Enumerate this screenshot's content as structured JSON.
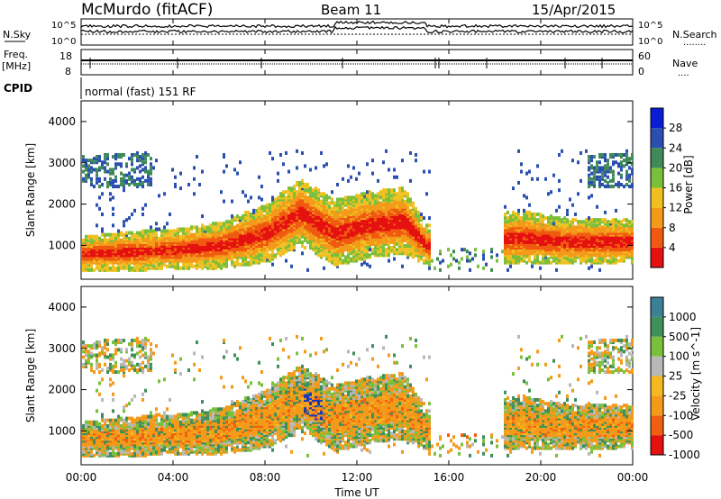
{
  "header": {
    "station": "McMurdo (fitACF)",
    "beam": "Beam 11",
    "date": "15/Apr/2015"
  },
  "noise_panel": {
    "left_label": "N.Sky",
    "right_label": "N.Search",
    "right_marker": "........",
    "left_ticks": [
      "10^5",
      "10^0"
    ],
    "right_ticks": [
      "10^5",
      "10^0"
    ]
  },
  "freq_panel": {
    "left_label_1": "Freq.",
    "left_label_2": "[MHz]",
    "left_ticks": [
      "18",
      "8"
    ],
    "right_label": "Nave",
    "right_marker": "....",
    "right_ticks": [
      "60",
      "0"
    ]
  },
  "cpid": {
    "label": "CPID",
    "mode": "normal (fast) 151 RF"
  },
  "x_axis": {
    "label": "Time UT",
    "ticks": [
      "00:00",
      "04:00",
      "08:00",
      "12:00",
      "16:00",
      "20:00",
      "00:00"
    ]
  },
  "power_panel": {
    "ylabel": "Slant Range [km]",
    "yticks": [
      "4000",
      "3000",
      "2000",
      "1000"
    ],
    "cbar_label": "Power [dB]",
    "cbar_ticks": [
      "28",
      "24",
      "20",
      "16",
      "12",
      "8",
      "4"
    ],
    "colors": [
      "#0a1cd6",
      "#2a4fb0",
      "#3f8a58",
      "#7abf3a",
      "#f0c020",
      "#f39a1a",
      "#f05a10",
      "#e51010"
    ]
  },
  "velocity_panel": {
    "ylabel": "Slant Range [km]",
    "yticks": [
      "4000",
      "3000",
      "2000",
      "1000"
    ],
    "cbar_label": "Velocity [m s^-1]",
    "cbar_ticks": [
      "1000",
      "500",
      "100",
      "25",
      "-25",
      "-100",
      "-500",
      "-1000"
    ],
    "colors": [
      "#1a3ab8",
      "#3d7f95",
      "#3f8f5a",
      "#7ac03a",
      "#b8b8b8",
      "#f5b820",
      "#f39a1a",
      "#f06010",
      "#e51010"
    ]
  },
  "chart_data": {
    "type": "heatmap",
    "x": [
      "00:00",
      "04:00",
      "08:00",
      "12:00",
      "16:00",
      "20:00",
      "00:00"
    ],
    "ylim": [
      180,
      4500
    ],
    "power_series": [
      {
        "t": 0.0,
        "center": 800,
        "width": 250
      },
      {
        "t": 2.0,
        "center": 850,
        "width": 300
      },
      {
        "t": 4.0,
        "center": 900,
        "width": 300
      },
      {
        "t": 6.0,
        "center": 1000,
        "width": 350
      },
      {
        "t": 8.0,
        "center": 1300,
        "width": 450
      },
      {
        "t": 9.5,
        "center": 1800,
        "width": 500
      },
      {
        "t": 11.0,
        "center": 1300,
        "width": 500
      },
      {
        "t": 12.5,
        "center": 1500,
        "width": 500
      },
      {
        "t": 14.0,
        "center": 1600,
        "width": 500
      },
      {
        "t": 15.0,
        "center": 1000,
        "width": 300
      },
      {
        "t": 19.0,
        "center": 1200,
        "width": 400
      },
      {
        "t": 21.0,
        "center": 1100,
        "width": 350
      },
      {
        "t": 24.0,
        "center": 1100,
        "width": 350
      }
    ]
  }
}
